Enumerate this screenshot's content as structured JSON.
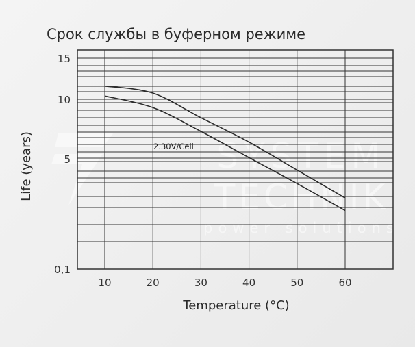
{
  "chart_data": {
    "type": "line",
    "title": "Срок службы в буферном режиме",
    "xlabel": "Temperature (°C)",
    "ylabel": "Life (years)",
    "x_ticks": [
      "10",
      "20",
      "30",
      "40",
      "50",
      "60"
    ],
    "y_ticks": [
      "15",
      "10",
      "5",
      "0,1"
    ],
    "xlim": [
      3,
      70
    ],
    "grid": true,
    "annotation": "2.30V/Cell",
    "x": [
      10,
      20,
      30,
      40,
      50,
      60
    ],
    "series": [
      {
        "values": [
          11.6,
          10.75,
          8.45,
          6.4,
          4.5,
          3.26
        ]
      },
      {
        "values": [
          10.4,
          9.3,
          7.3,
          5.1,
          3.9,
          2.7
        ]
      }
    ],
    "line_color": "#2b2b2b",
    "grid_color": "#333333"
  },
  "watermark": {
    "line1": "SYSTEM",
    "line2": "TECHNIK",
    "line3": "power solutions"
  }
}
